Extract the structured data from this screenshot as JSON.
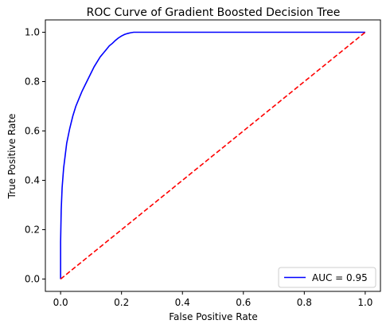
{
  "chart_data": {
    "type": "line",
    "title": "ROC Curve of Gradient Boosted Decision Tree",
    "xlabel": "False Positive Rate",
    "ylabel": "True Positive Rate",
    "xlim": [
      -0.05,
      1.05
    ],
    "ylim": [
      -0.05,
      1.05
    ],
    "xticks": [
      0.0,
      0.2,
      0.4,
      0.6,
      0.8,
      1.0
    ],
    "yticks": [
      0.0,
      0.2,
      0.4,
      0.6,
      0.8,
      1.0
    ],
    "xtick_labels": [
      "0.0",
      "0.2",
      "0.4",
      "0.6",
      "0.8",
      "1.0"
    ],
    "ytick_labels": [
      "0.0",
      "0.2",
      "0.4",
      "0.6",
      "0.8",
      "1.0"
    ],
    "grid": false,
    "legend_position": "lower-right",
    "series": [
      {
        "name": "AUC = 0.95",
        "color": "#0000ff",
        "style": "solid",
        "x": [
          0.0,
          0.0,
          0.002,
          0.005,
          0.01,
          0.015,
          0.02,
          0.03,
          0.04,
          0.05,
          0.06,
          0.07,
          0.08,
          0.09,
          0.1,
          0.11,
          0.12,
          0.13,
          0.14,
          0.15,
          0.16,
          0.17,
          0.18,
          0.19,
          0.2,
          0.21,
          0.22,
          0.23,
          0.24,
          0.25,
          0.3,
          0.4,
          0.5,
          0.6,
          0.7,
          0.8,
          0.9,
          1.0
        ],
        "y": [
          0.0,
          0.15,
          0.28,
          0.37,
          0.45,
          0.5,
          0.55,
          0.61,
          0.66,
          0.7,
          0.73,
          0.76,
          0.785,
          0.81,
          0.835,
          0.86,
          0.88,
          0.9,
          0.915,
          0.93,
          0.945,
          0.955,
          0.967,
          0.977,
          0.985,
          0.991,
          0.995,
          0.998,
          1.0,
          1.0,
          1.0,
          1.0,
          1.0,
          1.0,
          1.0,
          1.0,
          1.0,
          1.0
        ]
      },
      {
        "name": "",
        "color": "#ff0000",
        "style": "dashed",
        "x": [
          0.0,
          1.0
        ],
        "y": [
          0.0,
          1.0
        ]
      }
    ]
  }
}
